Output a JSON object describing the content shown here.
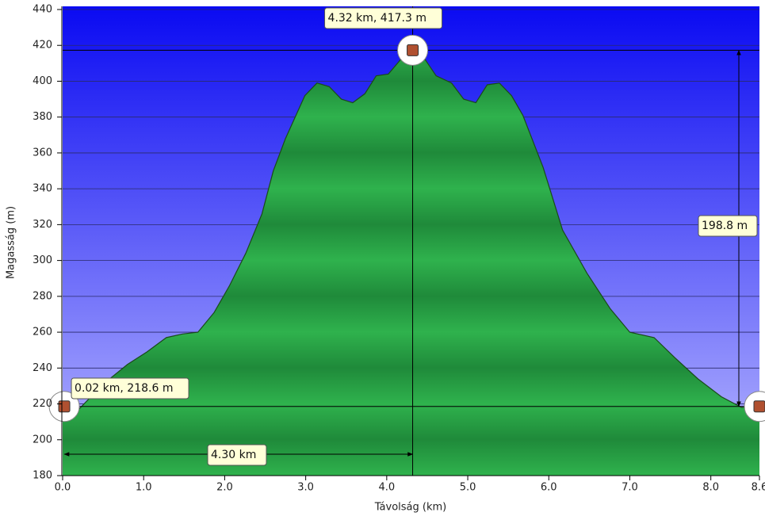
{
  "chart_data": {
    "type": "area",
    "xlabel": "Távolság   (km)",
    "ylabel": "Magasság (m)",
    "xlim": [
      0,
      8.6
    ],
    "ylim": [
      180,
      440
    ],
    "xticks": [
      {
        "value": 0,
        "label": "0.0"
      },
      {
        "value": 1,
        "label": "1.0"
      },
      {
        "value": 2,
        "label": "2.0"
      },
      {
        "value": 3,
        "label": "3.0"
      },
      {
        "value": 4,
        "label": "4.0"
      },
      {
        "value": 5,
        "label": "5.0"
      },
      {
        "value": 6,
        "label": "6.0"
      },
      {
        "value": 7,
        "label": "7.0"
      },
      {
        "value": 8,
        "label": "8.0"
      },
      8.6
    ],
    "yticks": [
      180,
      200,
      220,
      240,
      260,
      280,
      300,
      320,
      340,
      360,
      380,
      400,
      420,
      440
    ],
    "grid": true,
    "color": "#22a043",
    "x": [
      0,
      0.2,
      0.5,
      0.8,
      1.04,
      1.28,
      1.48,
      1.67,
      1.87,
      2.06,
      2.26,
      2.46,
      2.6,
      2.75,
      2.99,
      3.14,
      3.29,
      3.44,
      3.58,
      3.73,
      3.87,
      4.02,
      4.17,
      4.32,
      4.46,
      4.61,
      4.8,
      4.95,
      5.1,
      5.24,
      5.39,
      5.54,
      5.68,
      5.93,
      6.17,
      6.47,
      6.76,
      7.0,
      7.3,
      7.55,
      7.84,
      8.13,
      8.38,
      8.6
    ],
    "values": [
      219,
      217,
      231,
      242,
      249,
      257,
      259,
      260,
      271,
      286,
      304,
      326,
      350,
      368,
      392,
      399,
      397,
      390,
      388,
      393,
      403,
      404,
      412,
      417.3,
      413,
      403,
      399,
      390,
      388,
      398,
      399,
      392,
      381,
      352,
      317,
      293,
      273,
      260,
      257,
      246,
      234,
      224,
      218,
      219
    ],
    "peak": {
      "x": 4.32,
      "y": 417.3,
      "label": "4.32 km, 417.3 m"
    },
    "start": {
      "x": 0.02,
      "y": 218.6,
      "label": "0.02 km, 218.6 m"
    },
    "rise_label": "198.8 m",
    "distance_label": "4.30 km"
  }
}
